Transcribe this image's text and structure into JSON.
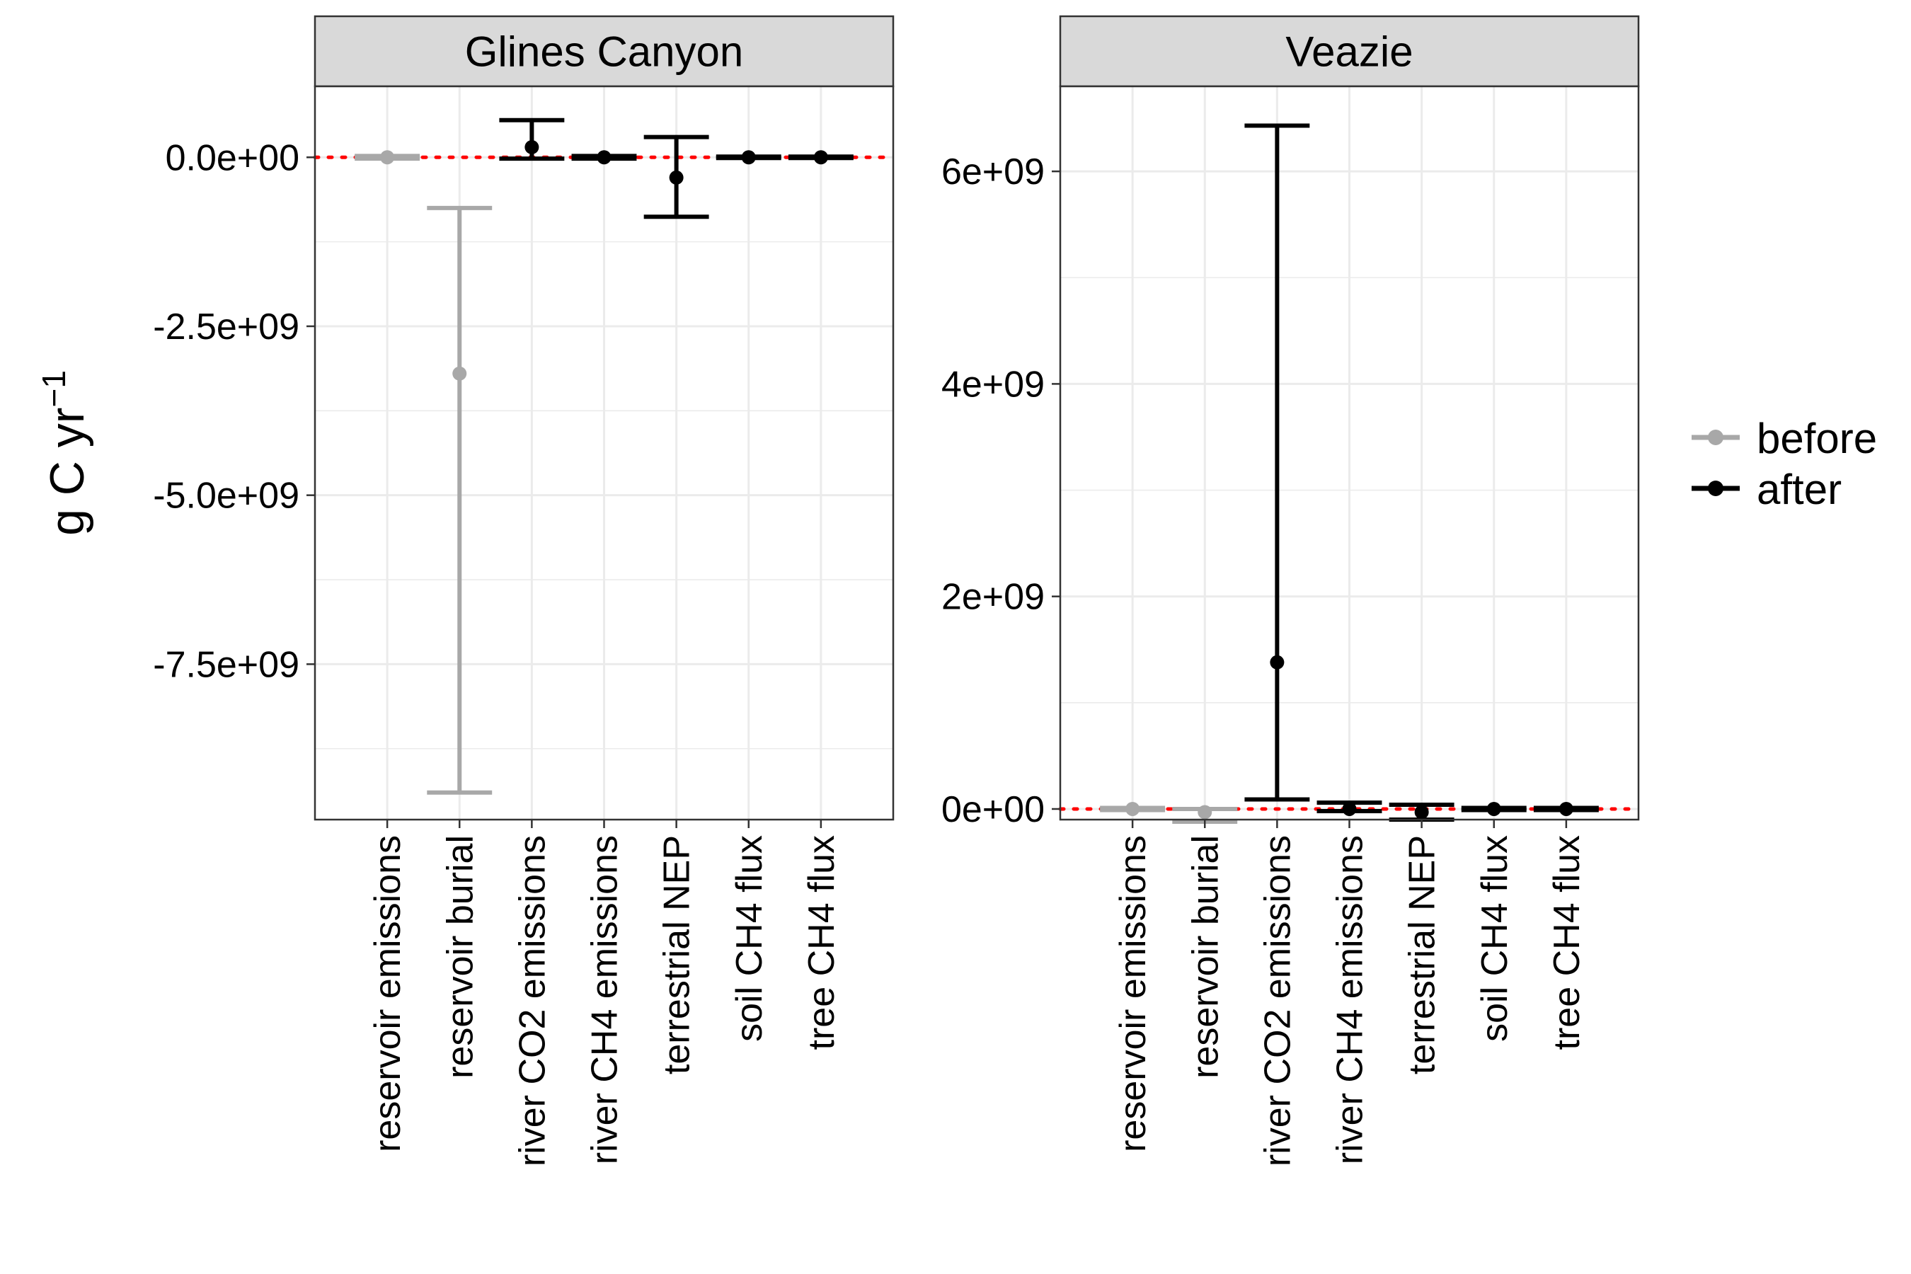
{
  "y_title": {
    "main": "g C yr",
    "superscript": "−1"
  },
  "legend": {
    "position": "right",
    "entries": [
      {
        "label": "before",
        "color": "#A8A8A8"
      },
      {
        "label": "after",
        "color": "#000000"
      }
    ]
  },
  "reference_line": {
    "value": 0,
    "style": "dotted",
    "color": "#FF0000"
  },
  "chart_data": [
    {
      "type": "errorbar",
      "panel": "Glines Canyon",
      "categories": [
        "reservoir emissions",
        "reservoir burial",
        "river CO2 emissions",
        "river CH4 emissions",
        "terrestrial NEP",
        "soil CH4 flux",
        "tree CH4 flux"
      ],
      "ylim": [
        -9800000000.0,
        1050000000.0
      ],
      "yticks": [
        0,
        -2500000000.0,
        -5000000000.0,
        -7500000000.0
      ],
      "ytick_labels": [
        "0.0e+00",
        "-2.5e+09",
        "-5.0e+09",
        "-7.5e+09"
      ],
      "grid": true,
      "series": [
        {
          "name": "before",
          "color": "#A8A8A8",
          "points": [
            {
              "category": "reservoir emissions",
              "y": 0,
              "ymin": -20000000.0,
              "ymax": 20000000.0
            },
            {
              "category": "reservoir burial",
              "y": -3200000000.0,
              "ymin": -9400000000.0,
              "ymax": -750000000.0
            }
          ]
        },
        {
          "name": "after",
          "color": "#000000",
          "points": [
            {
              "category": "river CO2 emissions",
              "y": 150000000.0,
              "ymin": -20000000.0,
              "ymax": 550000000.0
            },
            {
              "category": "river CH4 emissions",
              "y": 0,
              "ymin": -20000000.0,
              "ymax": 20000000.0
            },
            {
              "category": "terrestrial NEP",
              "y": -300000000.0,
              "ymin": -880000000.0,
              "ymax": 300000000.0
            },
            {
              "category": "soil CH4 flux",
              "y": 0,
              "ymin": -10000000.0,
              "ymax": 10000000.0
            },
            {
              "category": "tree CH4 flux",
              "y": 0,
              "ymin": -10000000.0,
              "ymax": 10000000.0
            }
          ]
        }
      ]
    },
    {
      "type": "errorbar",
      "panel": "Veazie",
      "categories": [
        "reservoir emissions",
        "reservoir burial",
        "river CO2 emissions",
        "river CH4 emissions",
        "terrestrial NEP",
        "soil CH4 flux",
        "tree CH4 flux"
      ],
      "ylim": [
        -100000000.0,
        6800000000.0
      ],
      "yticks": [
        0,
        2000000000.0,
        4000000000.0,
        6000000000.0
      ],
      "ytick_labels": [
        "0e+00",
        "2e+09",
        "4e+09",
        "6e+09"
      ],
      "grid": true,
      "series": [
        {
          "name": "before",
          "color": "#A8A8A8",
          "points": [
            {
              "category": "reservoir emissions",
              "y": 0,
              "ymin": -10000000.0,
              "ymax": 10000000.0
            },
            {
              "category": "reservoir burial",
              "y": -30000000.0,
              "ymin": -120000000.0,
              "ymax": 0
            }
          ]
        },
        {
          "name": "after",
          "color": "#000000",
          "points": [
            {
              "category": "river CO2 emissions",
              "y": 1380000000.0,
              "ymin": 90000000.0,
              "ymax": 6430000000.0
            },
            {
              "category": "river CH4 emissions",
              "y": 0,
              "ymin": -20000000.0,
              "ymax": 60000000.0
            },
            {
              "category": "terrestrial NEP",
              "y": -30000000.0,
              "ymin": -100000000.0,
              "ymax": 40000000.0
            },
            {
              "category": "soil CH4 flux",
              "y": 0,
              "ymin": -10000000.0,
              "ymax": 10000000.0
            },
            {
              "category": "tree CH4 flux",
              "y": 0,
              "ymin": -10000000.0,
              "ymax": 10000000.0
            }
          ]
        }
      ]
    }
  ]
}
